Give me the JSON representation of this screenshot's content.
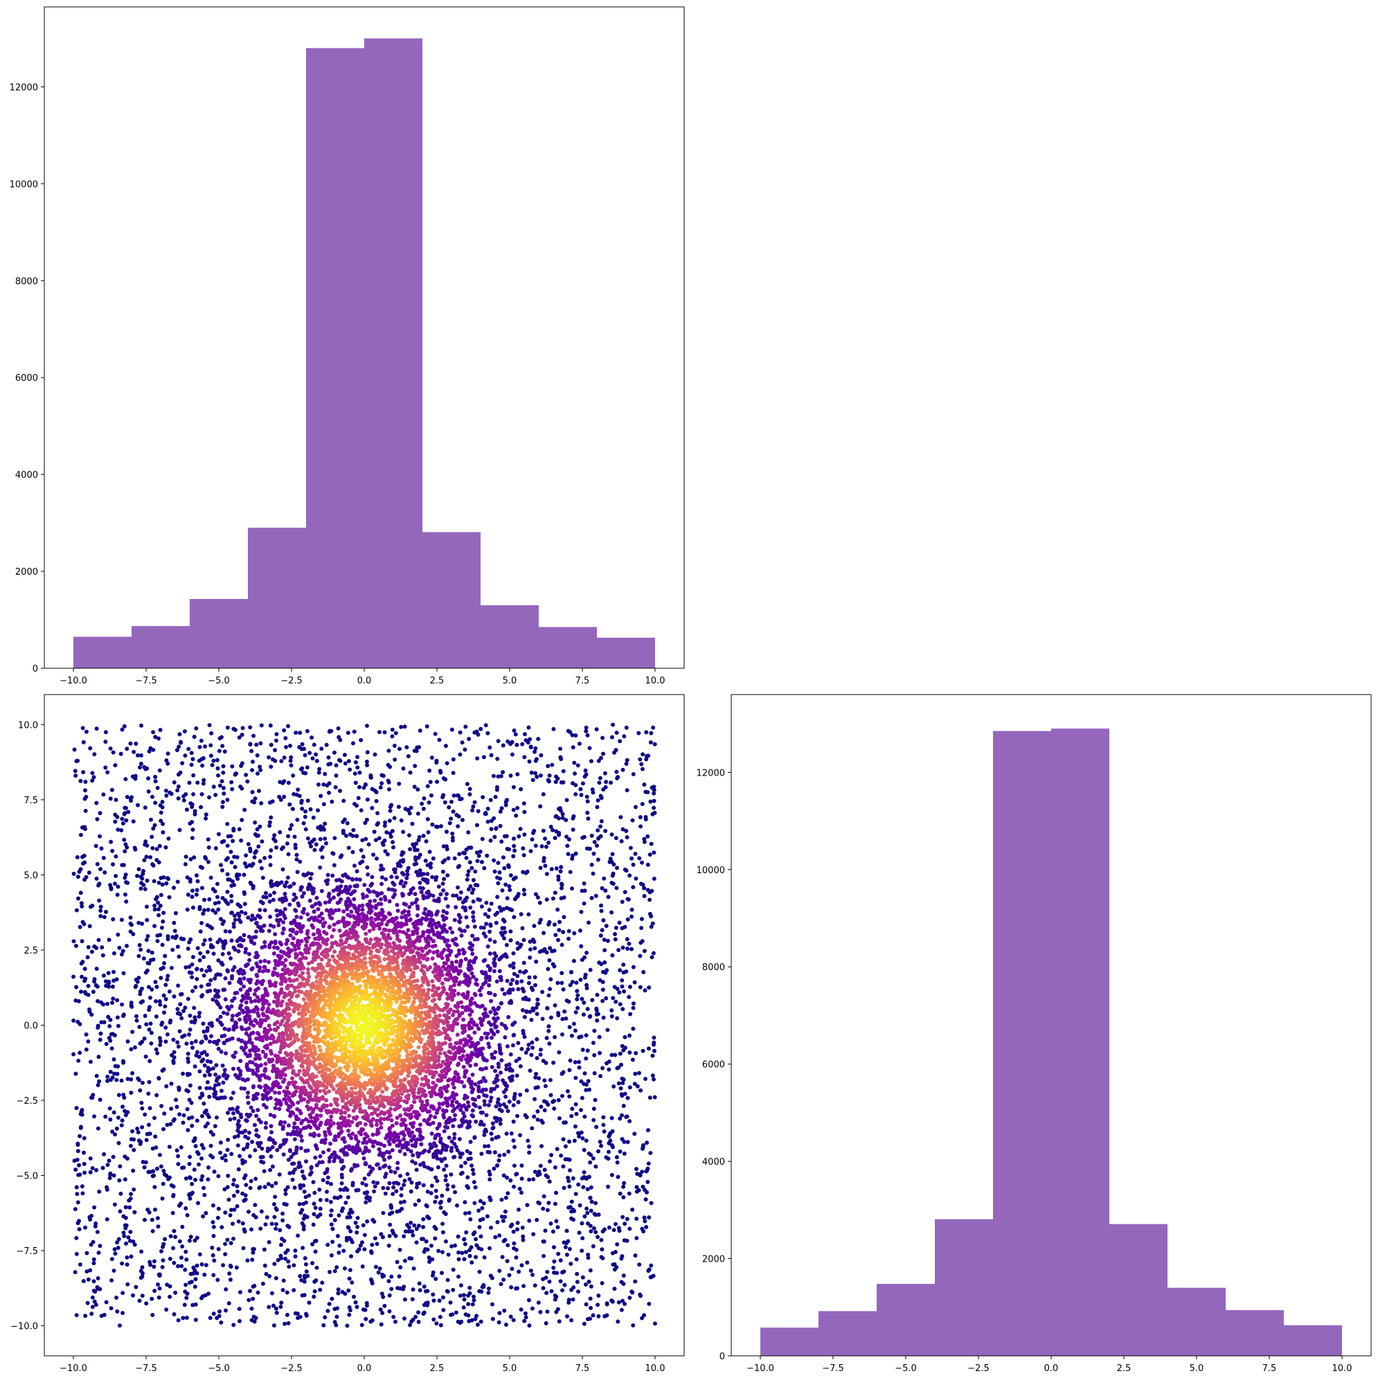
{
  "colors": {
    "bar": "#9467bd",
    "axis": "#000000",
    "background": "#ffffff",
    "scatter_colormap": "plasma",
    "scatter_low": "#1a0a8c",
    "scatter_high": "#f0f921"
  },
  "chart_data": [
    {
      "panel": "top-left",
      "type": "bar",
      "histogram": true,
      "bin_edges": [
        -10,
        -8,
        -6,
        -4,
        -2,
        0,
        2,
        4,
        6,
        8,
        10
      ],
      "values": [
        650,
        870,
        1430,
        2900,
        12800,
        13000,
        2810,
        1300,
        850,
        630
      ],
      "xlim": [
        -11,
        11
      ],
      "ylim": [
        0,
        13650
      ],
      "xticks": [
        -10,
        -7.5,
        -5,
        -2.5,
        0,
        2.5,
        5,
        7.5,
        10
      ],
      "xtick_labels": [
        "−10.0",
        "−7.5",
        "−5.0",
        "−2.5",
        "0.0",
        "2.5",
        "5.0",
        "7.5",
        "10.0"
      ],
      "yticks": [
        0,
        2000,
        4000,
        6000,
        8000,
        10000,
        12000
      ],
      "ytick_labels": [
        "0",
        "2000",
        "4000",
        "6000",
        "8000",
        "10000",
        "12000"
      ],
      "grid": false
    },
    {
      "panel": "bottom-left",
      "type": "scatter",
      "x_range": [
        -10,
        10
      ],
      "y_range": [
        -10,
        10
      ],
      "n_points_drawn": 9000,
      "color_by": "density",
      "colormap": "plasma",
      "description_of_points": "uniform background over [-10,10]x[-10,10] plus dense gaussian cluster centered at (0,0)",
      "xlim": [
        -11,
        11
      ],
      "ylim": [
        -11,
        11
      ],
      "xticks": [
        -10,
        -7.5,
        -5,
        -2.5,
        0,
        2.5,
        5,
        7.5,
        10
      ],
      "xtick_labels": [
        "−10.0",
        "−7.5",
        "−5.0",
        "−2.5",
        "0.0",
        "2.5",
        "5.0",
        "7.5",
        "10.0"
      ],
      "yticks": [
        -10,
        -7.5,
        -5,
        -2.5,
        0,
        2.5,
        5,
        7.5,
        10
      ],
      "ytick_labels": [
        "−10.0",
        "−7.5",
        "−5.0",
        "−2.5",
        "0.0",
        "2.5",
        "5.0",
        "7.5",
        "10.0"
      ],
      "grid": false
    },
    {
      "panel": "bottom-right",
      "type": "bar",
      "histogram": true,
      "bin_edges": [
        -10,
        -8,
        -6,
        -4,
        -2,
        0,
        2,
        4,
        6,
        8,
        10
      ],
      "values": [
        580,
        920,
        1480,
        2810,
        12850,
        12900,
        2710,
        1400,
        940,
        630
      ],
      "xlim": [
        -11,
        11
      ],
      "ylim": [
        0,
        13600
      ],
      "xticks": [
        -10,
        -7.5,
        -5,
        -2.5,
        0,
        2.5,
        5,
        7.5,
        10
      ],
      "xtick_labels": [
        "−10.0",
        "−7.5",
        "−5.0",
        "−2.5",
        "0.0",
        "2.5",
        "5.0",
        "7.5",
        "10.0"
      ],
      "yticks": [
        0,
        2000,
        4000,
        6000,
        8000,
        10000,
        12000
      ],
      "ytick_labels": [
        "0",
        "2000",
        "4000",
        "6000",
        "8000",
        "10000",
        "12000"
      ],
      "grid": false
    }
  ]
}
